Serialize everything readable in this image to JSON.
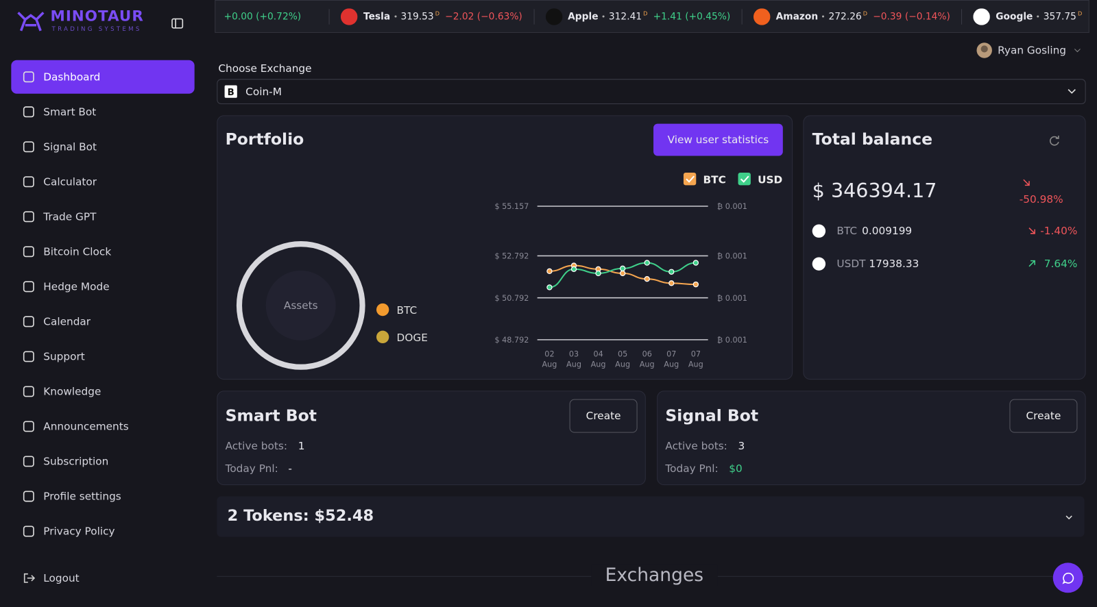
{
  "brand": {
    "name": "MINOTAUR",
    "tagline": "TRADING SYSTEMS"
  },
  "nav": [
    "Dashboard",
    "Smart Bot",
    "Signal Bot",
    "Calculator",
    "Trade GPT",
    "Bitcoin Clock",
    "Hedge Mode",
    "Calendar",
    "Support",
    "Knowledge",
    "Announcements",
    "Subscription",
    "Profile settings",
    "Privacy Policy"
  ],
  "logout": "Logout",
  "ticker": {
    "lead_change": "+0.00 (+0.72%)",
    "items": [
      {
        "name": "Tesla",
        "price": "319.53",
        "flag": "D",
        "change": "−2.02 (−0.63%)",
        "direction": "down",
        "color": "#e0322f"
      },
      {
        "name": "Apple",
        "price": "312.41",
        "flag": "D",
        "change": "+1.41 (+0.45%)",
        "direction": "up",
        "color": "#111111"
      },
      {
        "name": "Amazon",
        "price": "272.26",
        "flag": "D",
        "change": "−0.39 (−0.14%)",
        "direction": "down",
        "color": "#f0601e"
      },
      {
        "name": "Google",
        "price": "357.75",
        "flag": "D",
        "change": "",
        "direction": "up",
        "color": "#ffffff"
      }
    ]
  },
  "user": {
    "name": "Ryan Gosling"
  },
  "exchange": {
    "label": "Choose Exchange",
    "selected": "Coin-M"
  },
  "portfolio": {
    "title": "Portfolio",
    "button": "View user statistics",
    "donut_label": "Assets",
    "assets": [
      "BTC",
      "DOGE"
    ]
  },
  "chart_data": {
    "type": "line",
    "categories": [
      "02 Aug",
      "03 Aug",
      "04 Aug",
      "05 Aug",
      "06 Aug",
      "07 Aug",
      "07 Aug"
    ],
    "series": [
      {
        "name": "BTC",
        "color": "#f5a54f",
        "values": [
          52.06,
          52.33,
          52.16,
          51.96,
          51.69,
          51.49,
          51.43
        ]
      },
      {
        "name": "USD",
        "color": "#3fd08a",
        "values": [
          51.29,
          52.16,
          51.96,
          52.19,
          52.46,
          52.03,
          52.46
        ]
      }
    ],
    "ylim": [
      48.792,
      55.157
    ],
    "yticks": [
      {
        "value": 48.792,
        "label": "$ 48.792"
      },
      {
        "value": 50.792,
        "label": "$ 50.792"
      },
      {
        "value": 52.792,
        "label": "$ 52.792"
      },
      {
        "value": 55.157,
        "label": "$ 55.157"
      }
    ],
    "y2_tick_labels": [
      "₿ 0.001",
      "₿ 0.001",
      "₿ 0.001",
      "₿ 0.001"
    ],
    "grid": true
  },
  "balance": {
    "title": "Total balance",
    "amount": "$ 346394.17",
    "change": "-50.98%",
    "assets": [
      {
        "symbol": "BTC",
        "amount": "0.009199",
        "change": "-1.40%",
        "direction": "down"
      },
      {
        "symbol": "USDT",
        "amount": "17938.33",
        "change": "7.64%",
        "direction": "up"
      }
    ]
  },
  "bots": [
    {
      "title": "Smart Bot",
      "button": "Create",
      "active_label": "Active bots:",
      "active": "1",
      "pnl_label": "Today Pnl:",
      "pnl": "-"
    },
    {
      "title": "Signal Bot",
      "button": "Create",
      "active_label": "Active bots:",
      "active": "3",
      "pnl_label": "Today Pnl:",
      "pnl": "$0"
    }
  ],
  "tokens": {
    "summary": "2 Tokens: $52.48"
  },
  "exchanges_heading": "Exchanges"
}
